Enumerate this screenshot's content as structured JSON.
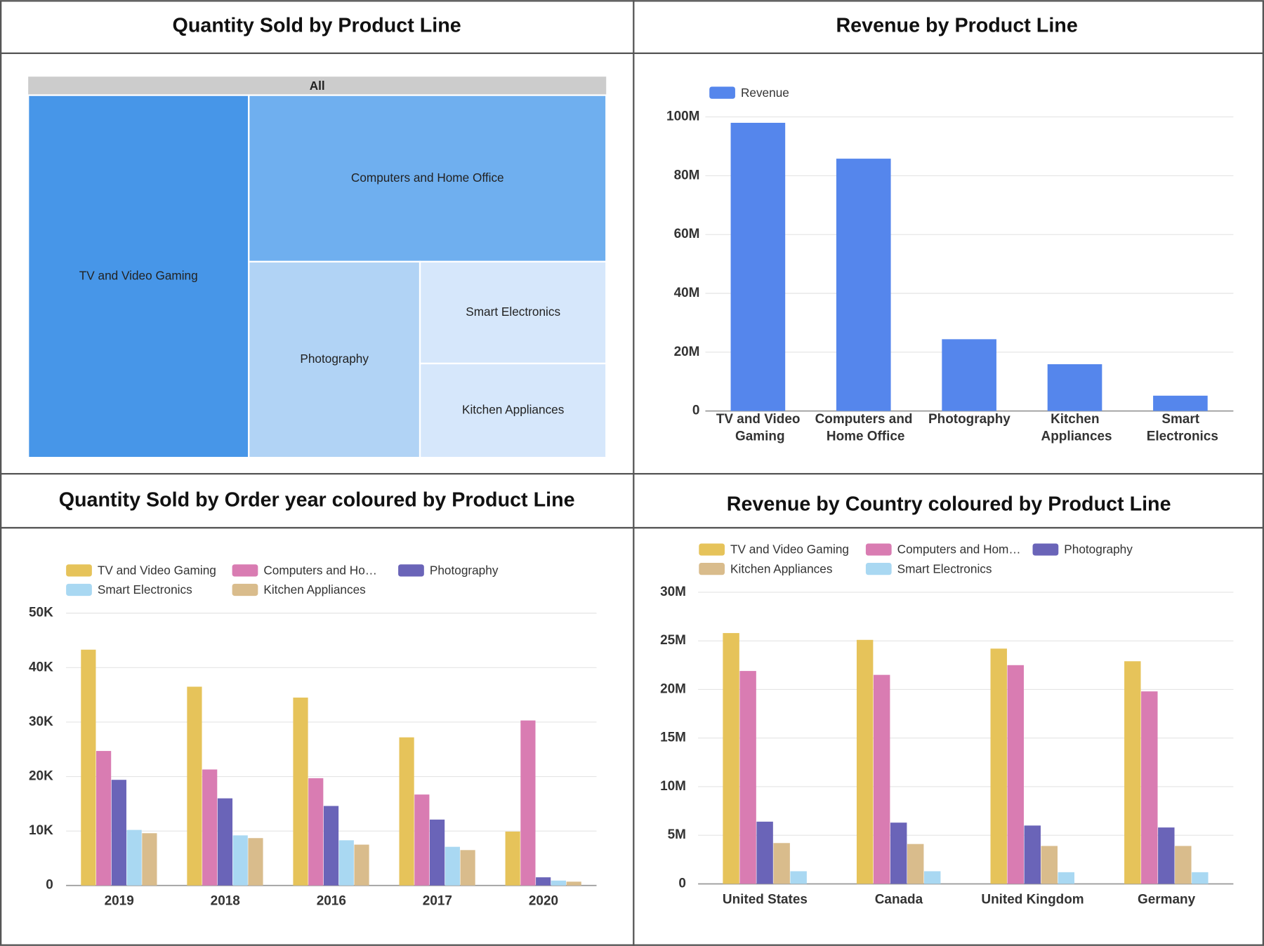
{
  "chart_data": [
    {
      "type": "treemap",
      "title": "Quantity Sold by Product Line",
      "root_label": "All",
      "categories": [
        "TV and Video Gaming",
        "Computers and Home Office",
        "Photography",
        "Smart Electronics",
        "Kitchen Appliances"
      ],
      "values": [
        151800,
        113000,
        63700,
        36000,
        33300
      ],
      "colors": [
        "#4796e8",
        "#6fafef",
        "#b1d3f5",
        "#d6e7fb",
        "#d6e7fb"
      ]
    },
    {
      "type": "bar",
      "title": "Revenue by Product Line",
      "legend": "top-left",
      "grid": true,
      "categories": [
        "TV and Video Gaming",
        "Computers and Home Office",
        "Photography",
        "Kitchen Appliances",
        "Smart Electronics"
      ],
      "series": [
        {
          "name": "Revenue",
          "color": "#5586ec",
          "values": [
            98000000,
            85800000,
            24400000,
            15900000,
            5200000
          ]
        }
      ],
      "ylim": [
        0,
        100000000
      ],
      "yticks": [
        0,
        {
          "value": 20000000,
          "label": "20M"
        },
        {
          "value": 40000000,
          "label": "40M"
        },
        {
          "value": 60000000,
          "label": "60M"
        },
        {
          "value": 80000000,
          "label": "80M"
        },
        {
          "value": 100000000,
          "label": "100M"
        }
      ]
    },
    {
      "type": "bar",
      "title": "Quantity Sold by Order year coloured by Product Line",
      "legend": "top-left",
      "grid": true,
      "categories": [
        "2019",
        "2018",
        "2016",
        "2017",
        "2020"
      ],
      "series": [
        {
          "name": "TV and Video Gaming",
          "color": "#e6c35a",
          "values": [
            43300,
            36500,
            34500,
            27200,
            9900
          ]
        },
        {
          "name": "Computers and Ho…",
          "color": "#d97cb2",
          "values": [
            24700,
            21300,
            19700,
            16700,
            30300
          ]
        },
        {
          "name": "Photography",
          "color": "#6a64b8",
          "values": [
            19400,
            16000,
            14600,
            12100,
            1500
          ]
        },
        {
          "name": "Smart Electronics",
          "color": "#a9d8f2",
          "values": [
            10200,
            9200,
            8300,
            7100,
            900
          ]
        },
        {
          "name": "Kitchen Appliances",
          "color": "#d9bc8c",
          "values": [
            9600,
            8700,
            7500,
            6500,
            700
          ]
        }
      ],
      "ylim": [
        0,
        50000
      ],
      "yticks": [
        0,
        {
          "value": 10000,
          "label": "10K"
        },
        {
          "value": 20000,
          "label": "20K"
        },
        {
          "value": 30000,
          "label": "30K"
        },
        {
          "value": 40000,
          "label": "40K"
        },
        {
          "value": 50000,
          "label": "50K"
        }
      ]
    },
    {
      "type": "bar",
      "title": "Revenue by Country coloured by Product Line",
      "legend": "top-left",
      "grid": true,
      "categories": [
        "United States",
        "Canada",
        "United Kingdom",
        "Germany"
      ],
      "series": [
        {
          "name": "TV and Video Gaming",
          "color": "#e6c35a",
          "values": [
            25800000,
            25100000,
            24200000,
            22900000
          ]
        },
        {
          "name": "Computers and Hom…",
          "color": "#d97cb2",
          "values": [
            21900000,
            21500000,
            22500000,
            19800000
          ]
        },
        {
          "name": "Photography",
          "color": "#6a64b8",
          "values": [
            6400000,
            6300000,
            6000000,
            5800000
          ]
        },
        {
          "name": "Kitchen Appliances",
          "color": "#d9bc8c",
          "values": [
            4200000,
            4100000,
            3900000,
            3900000
          ]
        },
        {
          "name": "Smart Electronics",
          "color": "#a9d8f2",
          "values": [
            1300000,
            1300000,
            1200000,
            1200000
          ]
        }
      ],
      "ylim": [
        0,
        30000000
      ],
      "yticks": [
        0,
        {
          "value": 5000000,
          "label": "5M"
        },
        {
          "value": 10000000,
          "label": "10M"
        },
        {
          "value": 15000000,
          "label": "15M"
        },
        {
          "value": 20000000,
          "label": "20M"
        },
        {
          "value": 25000000,
          "label": "25M"
        },
        {
          "value": 30000000,
          "label": "30M"
        }
      ]
    }
  ]
}
